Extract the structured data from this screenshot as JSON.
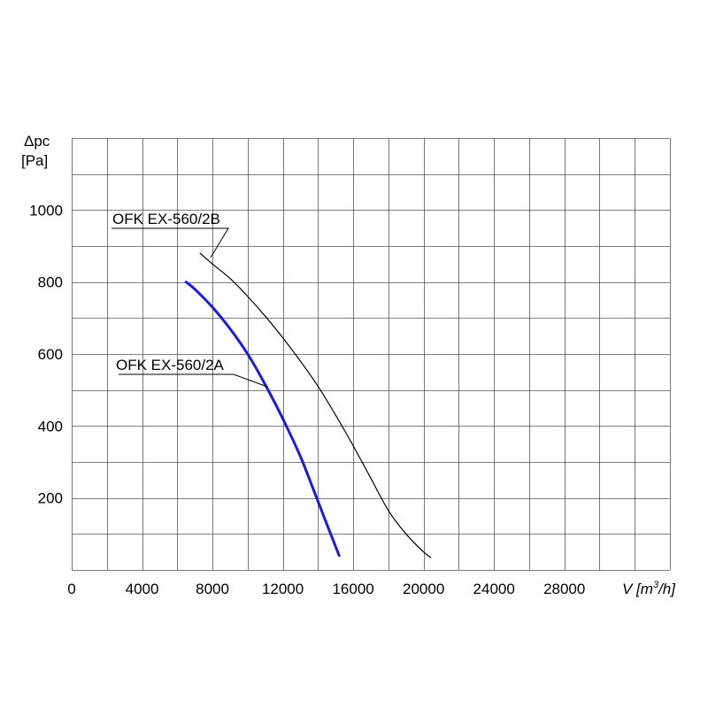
{
  "chart_data": {
    "type": "line",
    "xlabel": "V [m³/h]",
    "ylabel": "Δpc [Pa]",
    "xlim": [
      0,
      34000
    ],
    "ylim": [
      0,
      1200
    ],
    "grid": true,
    "x_ticks": [
      0,
      4000,
      8000,
      12000,
      16000,
      20000,
      24000,
      28000
    ],
    "y_ticks": [
      200,
      400,
      600,
      800,
      1000
    ],
    "x_tick_labels": [
      "0",
      "4000",
      "8000",
      "12000",
      "16000",
      "20000",
      "24000",
      "28000"
    ],
    "y_tick_labels": [
      "200",
      "400",
      "600",
      "800",
      "1000"
    ],
    "series": [
      {
        "name": "OFK EX-560/2B",
        "color": "#000000",
        "x": [
          7300,
          8000,
          9000,
          10000,
          11000,
          12000,
          13000,
          14000,
          15000,
          16000,
          17000,
          18000,
          19000,
          20000,
          20400
        ],
        "y": [
          880,
          850,
          810,
          760,
          705,
          645,
          580,
          510,
          430,
          345,
          255,
          165,
          100,
          50,
          35
        ]
      },
      {
        "name": "OFK EX-560/2A",
        "color": "#1a1ae6",
        "x": [
          6500,
          7000,
          8000,
          9000,
          10000,
          11000,
          12000,
          13000,
          14000,
          15200
        ],
        "y": [
          800,
          780,
          730,
          670,
          600,
          515,
          420,
          315,
          190,
          40
        ]
      }
    ]
  },
  "axis_text": {
    "y_title_line1": "Δpc",
    "y_title_line2": "[Pa]",
    "x_title_prefix": "V [m",
    "x_title_sup": "3",
    "x_title_suffix": "/h]"
  },
  "annotations": {
    "label_b": "OFK EX-560/2B",
    "label_a": "OFK EX-560/2A"
  }
}
